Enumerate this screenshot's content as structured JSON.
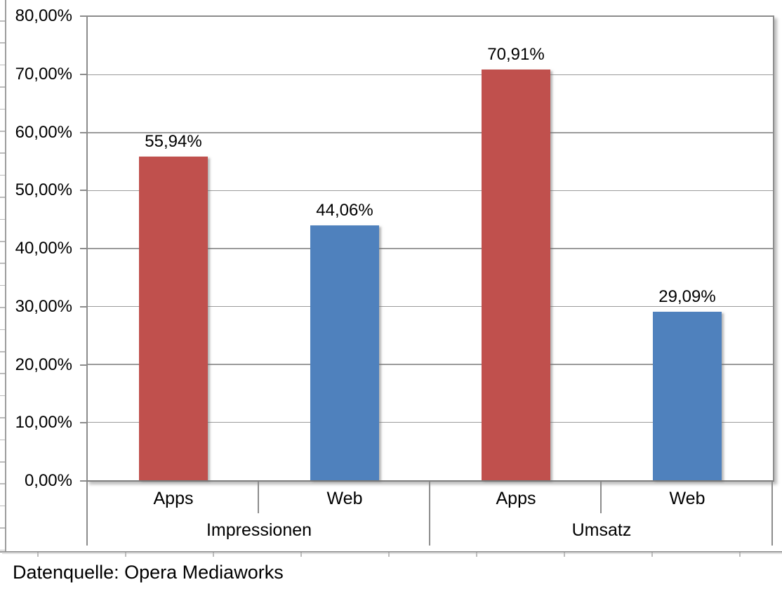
{
  "caption": "Datenquelle: Opera Mediaworks",
  "chart_data": {
    "type": "bar",
    "title": "",
    "xlabel": "",
    "ylabel": "",
    "ylim": [
      0,
      80
    ],
    "ytick_step": 10,
    "ytick_labels": [
      "0,00%",
      "10,00%",
      "20,00%",
      "30,00%",
      "40,00%",
      "50,00%",
      "60,00%",
      "70,00%",
      "80,00%"
    ],
    "grid": true,
    "legend": "none",
    "value_format": "percent-german-2dp",
    "series_colors": {
      "Apps": "#C0504D",
      "Web": "#4F81BD"
    },
    "groups": [
      {
        "label": "Impressionen",
        "bars": [
          {
            "label": "Apps",
            "value": 55.94,
            "display": "55,94%",
            "color": "#C0504D"
          },
          {
            "label": "Web",
            "value": 44.06,
            "display": "44,06%",
            "color": "#4F81BD"
          }
        ]
      },
      {
        "label": "Umsatz",
        "bars": [
          {
            "label": "Apps",
            "value": 70.91,
            "display": "70,91%",
            "color": "#C0504D"
          },
          {
            "label": "Web",
            "value": 29.09,
            "display": "29,09%",
            "color": "#4F81BD"
          }
        ]
      }
    ]
  }
}
